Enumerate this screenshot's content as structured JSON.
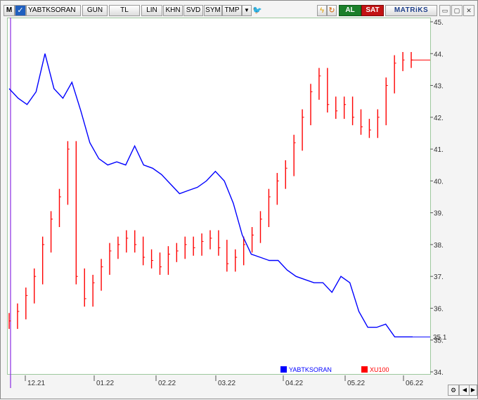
{
  "toolbar": {
    "m_label": "M",
    "symbol": "YABTKSORAN",
    "period": "GUN",
    "currency": "TL",
    "scale": "LIN",
    "khn": "KHN",
    "svd": "SVD",
    "sym": "SYM",
    "tmp": "TMP",
    "buy_label": "AL",
    "sell_label": "SAT",
    "brand": "MATRiKS",
    "icons": [
      "dropdown-icon",
      "twitter-icon",
      "lightning-icon",
      "refresh-icon",
      "minimize-icon",
      "restore-icon",
      "close-icon"
    ]
  },
  "legend": {
    "series1": "YABTKSORAN",
    "series2": "XU100"
  },
  "colors": {
    "series1": "#0000ff",
    "series2": "#ff0000",
    "plot_border": "#9cc79c"
  },
  "chart_data": {
    "type": "line",
    "x_tick_labels": [
      "12.21",
      "01.22",
      "02.22",
      "03.22",
      "04.22",
      "05.22",
      "06.22"
    ],
    "ylim": [
      34,
      45
    ],
    "y_ticks": [
      34,
      35,
      36,
      37,
      38,
      39,
      40,
      41,
      42,
      43,
      44,
      45
    ],
    "last_value_label": "35.1",
    "series": [
      {
        "name": "YABTKSORAN",
        "style": "line",
        "values": [
          42.9,
          42.6,
          42.4,
          42.8,
          44.0,
          42.9,
          42.6,
          43.1,
          42.2,
          41.2,
          40.7,
          40.5,
          40.6,
          40.5,
          41.1,
          40.5,
          40.4,
          40.2,
          39.9,
          39.6,
          39.7,
          39.8,
          40.0,
          40.3,
          40.0,
          39.3,
          38.3,
          37.7,
          37.6,
          37.5,
          37.5,
          37.2,
          37.0,
          36.9,
          36.8,
          36.8,
          36.5,
          37.0,
          36.8,
          35.9,
          35.4,
          35.4,
          35.5,
          35.1,
          35.1,
          35.1
        ]
      },
      {
        "name": "XU100",
        "style": "ohlc",
        "values": [
          35.6,
          35.9,
          36.4,
          37.0,
          38.0,
          38.8,
          39.5,
          41.0,
          37.0,
          36.3,
          36.8,
          37.3,
          37.8,
          38.0,
          38.2,
          38.0,
          37.6,
          37.5,
          37.3,
          37.7,
          37.8,
          38.0,
          37.9,
          38.1,
          38.2,
          37.9,
          37.4,
          37.6,
          38.0,
          38.3,
          38.8,
          39.5,
          40.0,
          40.4,
          41.2,
          42.0,
          42.8,
          43.3,
          42.4,
          42.2,
          42.4,
          42.0,
          41.7,
          41.6,
          42.0,
          43.0,
          43.7,
          43.8,
          43.8
        ]
      }
    ]
  }
}
